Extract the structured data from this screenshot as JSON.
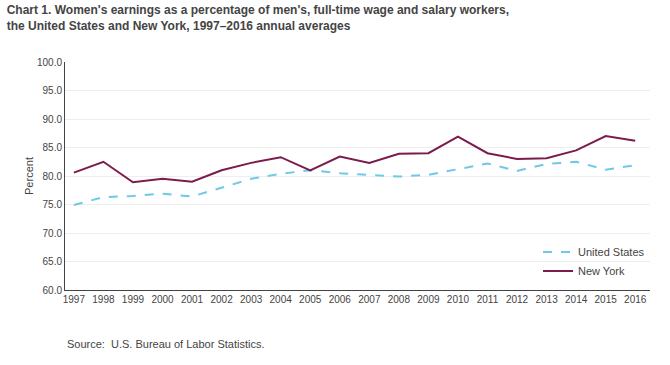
{
  "chart_data": {
    "type": "line",
    "title": "Chart 1. Women's earnings as a percentage of men's, full-time wage and salary workers, the United States and New York, 1997–2016 annual averages",
    "ylabel": "Percent",
    "annotations": [
      "Source:  U.S. Bureau of Labor Statistics."
    ],
    "x": [
      1997,
      1998,
      1999,
      2000,
      2001,
      2002,
      2003,
      2004,
      2005,
      2006,
      2007,
      2008,
      2009,
      2010,
      2011,
      2012,
      2013,
      2014,
      2015,
      2016
    ],
    "series": [
      {
        "name": "United States",
        "color": "#70C8E8",
        "line_style": "dashed",
        "values": [
          74.9,
          76.3,
          76.5,
          76.9,
          76.4,
          77.9,
          79.5,
          80.4,
          81.0,
          80.5,
          80.2,
          79.9,
          80.2,
          81.2,
          82.2,
          80.9,
          82.1,
          82.5,
          81.1,
          81.9
        ]
      },
      {
        "name": "New York",
        "color": "#7B1B4E",
        "line_style": "solid",
        "values": [
          80.6,
          82.5,
          78.9,
          79.5,
          79.0,
          81.0,
          82.3,
          83.3,
          81.0,
          83.4,
          82.3,
          83.9,
          84.0,
          86.9,
          84.0,
          83.0,
          83.1,
          84.5,
          87.0,
          86.2
        ]
      }
    ],
    "xlim": [
      1996.7,
      2016.5
    ],
    "xticks": [
      1997,
      1998,
      1999,
      2000,
      2001,
      2002,
      2003,
      2004,
      2005,
      2006,
      2007,
      2008,
      2009,
      2010,
      2011,
      2012,
      2013,
      2014,
      2015,
      2016
    ],
    "ylim": [
      60,
      100
    ],
    "yticks": [
      {
        "value": 60,
        "label": "60.0"
      },
      {
        "value": 65,
        "label": "65.0"
      },
      {
        "value": 70,
        "label": "70.0"
      },
      {
        "value": 75,
        "label": "75.0"
      },
      {
        "value": 80,
        "label": "80.0"
      },
      {
        "value": 85,
        "label": "85.0"
      },
      {
        "value": 90,
        "label": "90.0"
      },
      {
        "value": 95,
        "label": "95.0"
      },
      {
        "value": 100,
        "label": "100.0"
      }
    ],
    "grid": true,
    "legend": "lower right"
  }
}
